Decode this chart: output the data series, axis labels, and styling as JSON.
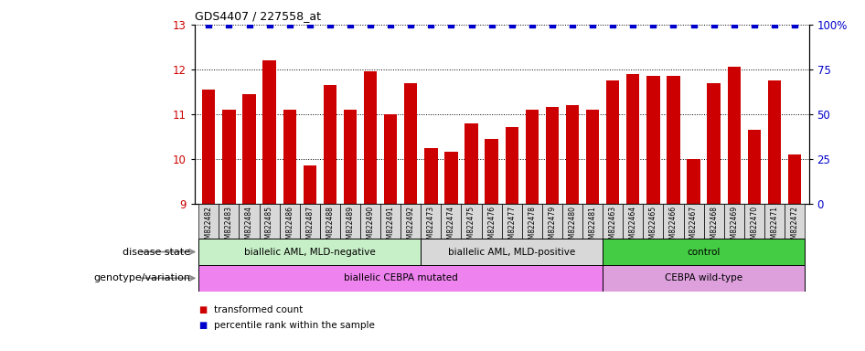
{
  "title": "GDS4407 / 227558_at",
  "samples": [
    "GSM822482",
    "GSM822483",
    "GSM822484",
    "GSM822485",
    "GSM822486",
    "GSM822487",
    "GSM822488",
    "GSM822489",
    "GSM822490",
    "GSM822491",
    "GSM822492",
    "GSM822473",
    "GSM822474",
    "GSM822475",
    "GSM822476",
    "GSM822477",
    "GSM822478",
    "GSM822479",
    "GSM822480",
    "GSM822481",
    "GSM822463",
    "GSM822464",
    "GSM822465",
    "GSM822466",
    "GSM822467",
    "GSM822468",
    "GSM822469",
    "GSM822470",
    "GSM822471",
    "GSM822472"
  ],
  "bar_values": [
    11.55,
    11.1,
    11.45,
    12.2,
    11.1,
    9.85,
    11.65,
    11.1,
    11.95,
    11.0,
    11.7,
    10.25,
    10.15,
    10.8,
    10.45,
    10.7,
    11.1,
    11.15,
    11.2,
    11.1,
    11.75,
    11.9,
    11.85,
    11.85,
    10.0,
    11.7,
    12.05,
    10.65,
    11.75,
    10.1
  ],
  "bar_color": "#cc0000",
  "percentile_color": "#0000cc",
  "ylim": [
    9,
    13
  ],
  "y2lim": [
    0,
    100
  ],
  "yticks": [
    9,
    10,
    11,
    12,
    13
  ],
  "y2ticks": [
    0,
    25,
    50,
    75,
    100
  ],
  "groups": [
    {
      "label": "biallelic AML, MLD-negative",
      "start": 0,
      "end": 11,
      "color": "#c8f0c8"
    },
    {
      "label": "biallelic AML, MLD-positive",
      "start": 11,
      "end": 20,
      "color": "#d8d8d8"
    },
    {
      "label": "control",
      "start": 20,
      "end": 30,
      "color": "#44cc44"
    }
  ],
  "genotype_groups": [
    {
      "label": "biallelic CEBPA mutated",
      "start": 0,
      "end": 20,
      "color": "#ee82ee"
    },
    {
      "label": "CEBPA wild-type",
      "start": 20,
      "end": 30,
      "color": "#dda0dd"
    }
  ],
  "disease_state_label": "disease state",
  "genotype_label": "genotype/variation",
  "legend_bar_label": "transformed count",
  "legend_pct_label": "percentile rank within the sample",
  "bg_color": "#ffffff",
  "tick_label_bg": "#d8d8d8"
}
